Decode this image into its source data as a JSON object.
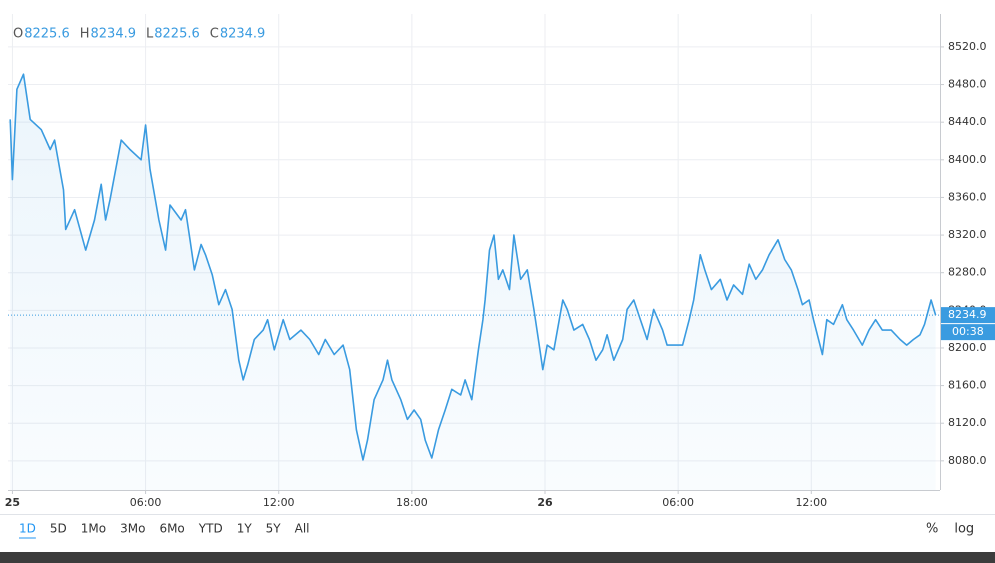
{
  "chart_data": {
    "type": "area",
    "ohlc": [
      {
        "name": "O",
        "value": 8225.6
      },
      {
        "name": "H",
        "value": 8234.9
      },
      {
        "name": "L",
        "value": 8225.6
      },
      {
        "name": "C",
        "value": 8234.9
      }
    ],
    "countdown": "00:38",
    "color": "#3a9be0",
    "x": [
      -0.1,
      0,
      0.2,
      0.5,
      0.8,
      1.3,
      1.7,
      1.9,
      2.3,
      2.4,
      2.8,
      3.3,
      3.7,
      4.0,
      4.2,
      4.4,
      4.9,
      5.3,
      5.8,
      6.0,
      6.2,
      6.6,
      6.9,
      7.1,
      7.6,
      7.8,
      8.0,
      8.2,
      8.5,
      8.7,
      9.0,
      9.3,
      9.6,
      9.9,
      10.2,
      10.4,
      10.6,
      10.9,
      11.3,
      11.5,
      11.8,
      12.2,
      12.5,
      13.0,
      13.4,
      13.8,
      14.1,
      14.5,
      14.9,
      15.2,
      15.5,
      15.8,
      16.0,
      16.3,
      16.7,
      16.9,
      17.1,
      17.5,
      17.8,
      18.1,
      18.4,
      18.6,
      18.9,
      19.2,
      19.5,
      19.8,
      20.2,
      20.4,
      20.7,
      21.0,
      21.2,
      21.3,
      21.5,
      21.7,
      21.9,
      22.1,
      22.4,
      22.6,
      22.9,
      23.2,
      23.5,
      23.7,
      23.9,
      24.1,
      24.4,
      24.8,
      25.0,
      25.3,
      25.7,
      26.0,
      26.3,
      26.6,
      26.8,
      27.1,
      27.5,
      27.7,
      28.0,
      28.3,
      28.6,
      28.9,
      29.3,
      29.5,
      29.8,
      30.2,
      30.5,
      30.7,
      31.0,
      31.2,
      31.5,
      31.9,
      32.2,
      32.5,
      32.9,
      33.2,
      33.5,
      33.8,
      34.1,
      34.5,
      34.8,
      35.1,
      35.4,
      35.6,
      35.9,
      36.1,
      36.5,
      36.7,
      37.0,
      37.4,
      37.6,
      37.9,
      38.3,
      38.6,
      38.9,
      39.2,
      39.6,
      40.0,
      40.3,
      40.6,
      40.9,
      41.1,
      41.4,
      41.6
    ],
    "values": [
      8443,
      8379,
      8475,
      8491,
      8443,
      8432,
      8411,
      8421,
      8368,
      8326,
      8347,
      8304,
      8336,
      8374,
      8336,
      8358,
      8421,
      8411,
      8400,
      8437,
      8390,
      8336,
      8304,
      8352,
      8336,
      8347,
      8315,
      8283,
      8310,
      8299,
      8278,
      8246,
      8262,
      8241,
      8187,
      8166,
      8182,
      8209,
      8219,
      8230,
      8198,
      8230,
      8209,
      8219,
      8209,
      8193,
      8209,
      8193,
      8203,
      8177,
      8113,
      8081,
      8102,
      8145,
      8166,
      8187,
      8166,
      8145,
      8124,
      8134,
      8124,
      8102,
      8083,
      8113,
      8134,
      8156,
      8150,
      8166,
      8145,
      8198,
      8230,
      8251,
      8304,
      8320,
      8273,
      8283,
      8262,
      8320,
      8273,
      8283,
      8241,
      8209,
      8177,
      8203,
      8198,
      8251,
      8241,
      8219,
      8225,
      8209,
      8187,
      8198,
      8214,
      8187,
      8209,
      8241,
      8251,
      8230,
      8209,
      8241,
      8219,
      8203,
      8203,
      8203,
      8230,
      8251,
      8299,
      8283,
      8262,
      8273,
      8251,
      8267,
      8257,
      8289,
      8273,
      8283,
      8299,
      8315,
      8294,
      8283,
      8262,
      8246,
      8251,
      8230,
      8193,
      8230,
      8225,
      8246,
      8230,
      8219,
      8203,
      8219,
      8230,
      8219,
      8219,
      8209,
      8203,
      8209,
      8214,
      8225,
      8251,
      8234.9
    ],
    "xlim": [
      -0.2,
      41.8
    ],
    "xticks": [
      {
        "value": 0,
        "label": "25"
      },
      {
        "value": 6,
        "label": "06:00"
      },
      {
        "value": 12,
        "label": "12:00"
      },
      {
        "value": 18,
        "label": "18:00"
      },
      {
        "value": 24,
        "label": "26"
      },
      {
        "value": 30,
        "label": "06:00"
      },
      {
        "value": 36,
        "label": "12:00"
      }
    ],
    "ylim": [
      8049,
      8555
    ],
    "yticks": [
      {
        "value": 8080,
        "label": "8080.0"
      },
      {
        "value": 8120,
        "label": "8120.0"
      },
      {
        "value": 8160,
        "label": "8160.0"
      },
      {
        "value": 8200,
        "label": "8200.0"
      },
      {
        "value": 8240,
        "label": "8240.0"
      },
      {
        "value": 8280,
        "label": "8280.0"
      },
      {
        "value": 8320,
        "label": "8320.0"
      },
      {
        "value": 8360,
        "label": "8360.0"
      },
      {
        "value": 8400,
        "label": "8400.0"
      },
      {
        "value": 8440,
        "label": "8440.0"
      },
      {
        "value": 8480,
        "label": "8480.0"
      },
      {
        "value": 8520,
        "label": "8520.0"
      }
    ],
    "grid": true,
    "log_scale": false
  },
  "toolbar": {
    "ranges": [
      "1D",
      "5D",
      "1Mo",
      "3Mo",
      "6Mo",
      "YTD",
      "1Y",
      "5Y",
      "All"
    ],
    "active": 0,
    "options": [
      "%",
      "log"
    ]
  }
}
